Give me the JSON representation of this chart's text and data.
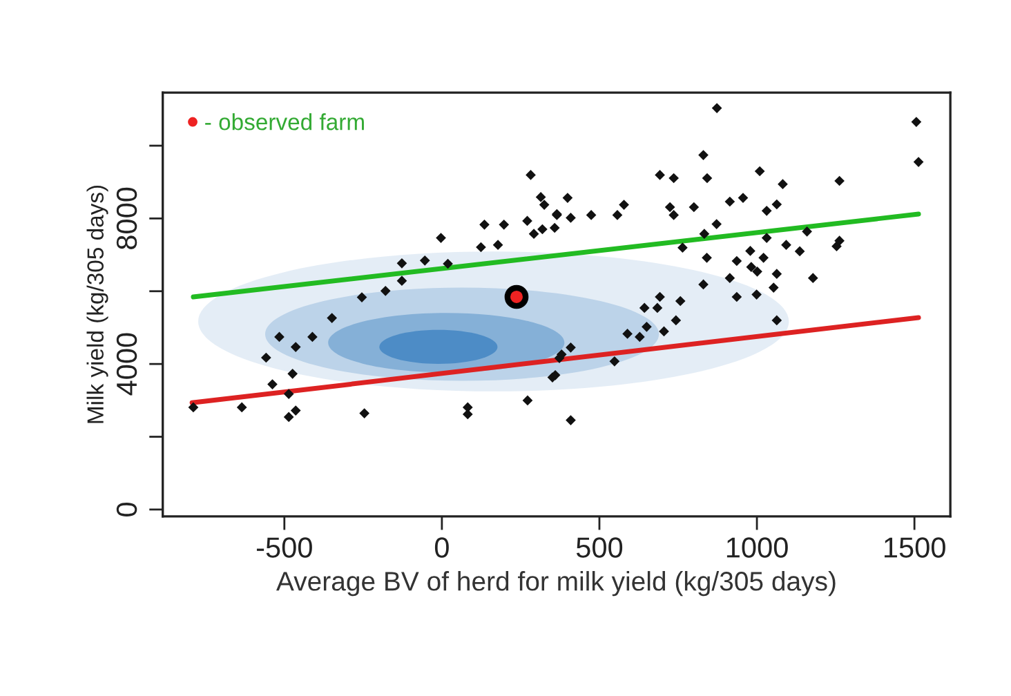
{
  "chart_data": {
    "type": "scatter",
    "xlabel": "Average BV of herd for milk yield (kg/305 days)",
    "ylabel": "Milk yield (kg/305 days)",
    "xlim": [
      -886,
      1614
    ],
    "ylim": [
      -190,
      11460
    ],
    "xticks": [
      -500,
      0,
      500,
      1000,
      1500
    ],
    "yticks": [
      0,
      {
        "value": 2000,
        "label": null
      },
      4000,
      {
        "value": 6000,
        "label": null
      },
      8000,
      {
        "value": 10000,
        "label": null
      }
    ],
    "grid": false,
    "legend": "top left",
    "series": [
      {
        "marker": "diamond",
        "color": "#111111",
        "x": [
          282,
          314,
          325,
          365,
          135,
          197,
          271,
          292,
          319,
          358,
          -3,
          124,
          178,
          -127,
          -54,
          19,
          -127,
          -179,
          -254,
          -349,
          -516,
          -464,
          -411,
          -558,
          -474,
          -538,
          -486,
          -789,
          -635,
          -464,
          -486,
          -246,
          82,
          82,
          272,
          351,
          373,
          873,
          1506,
          1513,
          830,
          692,
          736,
          842,
          1009,
          1082,
          1262,
          399,
          365,
          409,
          474,
          557,
          578,
          724,
          736,
          800,
          914,
          956,
          1031,
          1063,
          872,
          833,
          764,
          1031,
          1159,
          1093,
          1136,
          1253,
          1262,
          841,
          979,
          1021,
          936,
          982,
          1001,
          1063,
          914,
          830,
          1053,
          1178,
          936,
          999,
          692,
          757,
          643,
          684,
          743,
          650,
          705,
          589,
          628,
          1063,
          409,
          380,
          548,
          360,
          409
        ],
        "values": [
          9195,
          8588,
          8375,
          8095,
          7830,
          7830,
          7932,
          7577,
          7704,
          7742,
          7464,
          7210,
          7274,
          6768,
          6843,
          6755,
          6287,
          6008,
          5832,
          5263,
          4744,
          4466,
          4744,
          4174,
          3731,
          3442,
          3176,
          2808,
          2808,
          2721,
          2543,
          2645,
          2808,
          2619,
          2998,
          3632,
          4163,
          11032,
          10653,
          9552,
          9742,
          9195,
          9108,
          9108,
          9298,
          8944,
          9032,
          8565,
          8121,
          8019,
          8095,
          8095,
          8375,
          8311,
          8095,
          8311,
          8463,
          8565,
          8209,
          8387,
          7844,
          7577,
          7197,
          7464,
          7640,
          7274,
          7097,
          7236,
          7388,
          6919,
          7108,
          6919,
          6831,
          6666,
          6540,
          6476,
          6362,
          6186,
          6099,
          6362,
          5844,
          5908,
          5844,
          5730,
          5541,
          5541,
          5199,
          5021,
          4896,
          4830,
          4744,
          5199,
          4452,
          4262,
          4072,
          3693,
          2455
        ]
      },
      {
        "type": "line",
        "color": "#22bb22",
        "x": [
          -789,
          1513
        ],
        "values": [
          5844,
          8121
        ]
      },
      {
        "type": "line",
        "color": "#dd2222",
        "x": [
          -793,
          1513
        ],
        "values": [
          2934,
          5275
        ]
      },
      {
        "marker": "circle",
        "name": "- observed farm",
        "color": "#ee2222",
        "x": [
          237
        ],
        "values": [
          5844
        ]
      }
    ]
  }
}
